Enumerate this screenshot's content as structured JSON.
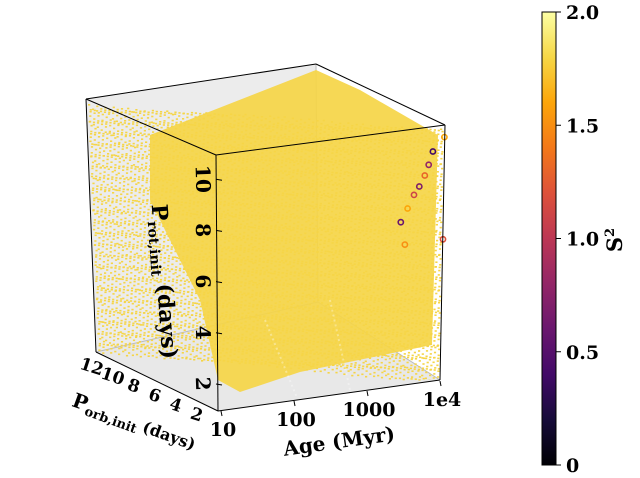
{
  "chart_data": {
    "type": "scatter",
    "projection": "3d",
    "x_axis": {
      "label": "Age (Myr)",
      "scale": "log",
      "ticks": [
        {
          "value": 10,
          "label": "10"
        },
        {
          "value": 100,
          "label": "100"
        },
        {
          "value": 1000,
          "label": "1000"
        },
        {
          "value": 10000,
          "label": "1e4"
        }
      ],
      "range": [
        10,
        20000
      ]
    },
    "y_axis": {
      "label": "P_orb,init (days)",
      "label_main": "P",
      "label_sub": "orb,init",
      "label_unit": " (days)",
      "ticks": [
        {
          "value": 12,
          "label": "12"
        },
        {
          "value": 10,
          "label": "10"
        },
        {
          "value": 8,
          "label": "8"
        },
        {
          "value": 6,
          "label": "6"
        },
        {
          "value": 4,
          "label": "4"
        },
        {
          "value": 2,
          "label": "2"
        }
      ],
      "range": [
        1,
        14
      ]
    },
    "z_axis": {
      "label": "P_rot,init (days)",
      "label_main": "P",
      "label_sub": "rot,init",
      "label_unit": " (days)",
      "ticks": [
        {
          "value": 2,
          "label": "2"
        },
        {
          "value": 4,
          "label": "4"
        },
        {
          "value": 6,
          "label": "6"
        },
        {
          "value": 8,
          "label": "8"
        },
        {
          "value": 10,
          "label": "10"
        }
      ],
      "range": [
        1.5,
        11.5
      ]
    },
    "colorbar": {
      "label": "S²",
      "label_main": "S",
      "label_sup": "2",
      "min": 0,
      "max": 2.0,
      "ticks": [
        {
          "value": 0,
          "label": "0"
        },
        {
          "value": 0.5,
          "label": "0.5"
        },
        {
          "value": 1.0,
          "label": "1.0"
        },
        {
          "value": 1.5,
          "label": "1.5"
        },
        {
          "value": 2.0,
          "label": "2.0"
        }
      ],
      "colormap": "inferno"
    },
    "bulk_description": "dense grid of models saturating at S2 = 2.0",
    "bulk_value": 2.0,
    "bulk_color": "#f5d547",
    "highlighted_points": [
      {
        "age": 11500,
        "p_orb": 12.5,
        "p_rot": 11.0,
        "s2": 1.6
      },
      {
        "age": 8000,
        "p_orb": 12.5,
        "p_rot": 10.5,
        "s2": 0.4
      },
      {
        "age": 7000,
        "p_orb": 12.5,
        "p_rot": 10.0,
        "s2": 0.8
      },
      {
        "age": 6200,
        "p_orb": 12.5,
        "p_rot": 9.6,
        "s2": 1.3
      },
      {
        "age": 5200,
        "p_orb": 12.5,
        "p_rot": 9.2,
        "s2": 0.7
      },
      {
        "age": 4400,
        "p_orb": 12.5,
        "p_rot": 8.9,
        "s2": 1.1
      },
      {
        "age": 3600,
        "p_orb": 12.5,
        "p_rot": 8.4,
        "s2": 1.6
      },
      {
        "age": 2900,
        "p_orb": 12.5,
        "p_rot": 7.9,
        "s2": 0.6
      },
      {
        "age": 3300,
        "p_orb": 12.5,
        "p_rot": 7.0,
        "s2": 1.5
      },
      {
        "age": 11000,
        "p_orb": 12.5,
        "p_rot": 7.0,
        "s2": 1.2
      }
    ]
  }
}
